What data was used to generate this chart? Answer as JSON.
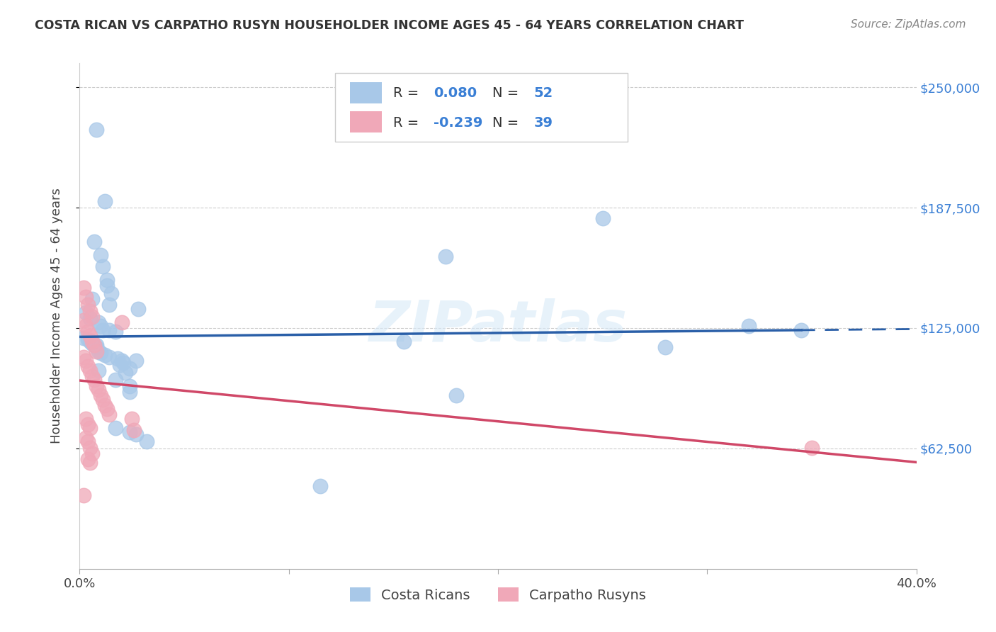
{
  "title": "COSTA RICAN VS CARPATHO RUSYN HOUSEHOLDER INCOME AGES 45 - 64 YEARS CORRELATION CHART",
  "source": "Source: ZipAtlas.com",
  "ylabel": "Householder Income Ages 45 - 64 years",
  "xlim": [
    0.0,
    0.4
  ],
  "ylim": [
    0,
    262500
  ],
  "yticks": [
    62500,
    125000,
    187500,
    250000
  ],
  "ytick_labels": [
    "$62,500",
    "$125,000",
    "$187,500",
    "$250,000"
  ],
  "xticks": [
    0.0,
    0.1,
    0.2,
    0.3,
    0.4
  ],
  "blue_R": 0.08,
  "blue_N": 52,
  "pink_R": -0.239,
  "pink_N": 39,
  "blue_color": "#a8c8e8",
  "blue_line_color": "#2a5fa8",
  "pink_color": "#f0a8b8",
  "pink_line_color": "#d04868",
  "blue_scatter": [
    [
      0.008,
      228000
    ],
    [
      0.012,
      191000
    ],
    [
      0.007,
      170000
    ],
    [
      0.01,
      163000
    ],
    [
      0.011,
      157000
    ],
    [
      0.013,
      150000
    ],
    [
      0.013,
      147000
    ],
    [
      0.015,
      143000
    ],
    [
      0.006,
      140000
    ],
    [
      0.014,
      137000
    ],
    [
      0.028,
      135000
    ],
    [
      0.003,
      133000
    ],
    [
      0.005,
      130000
    ],
    [
      0.009,
      128000
    ],
    [
      0.01,
      126000
    ],
    [
      0.011,
      124000
    ],
    [
      0.014,
      124000
    ],
    [
      0.017,
      123000
    ],
    [
      0.002,
      120000
    ],
    [
      0.004,
      119000
    ],
    [
      0.005,
      118000
    ],
    [
      0.006,
      117000
    ],
    [
      0.007,
      116000
    ],
    [
      0.008,
      116000
    ],
    [
      0.008,
      115000
    ],
    [
      0.009,
      113000
    ],
    [
      0.01,
      112000
    ],
    [
      0.012,
      111000
    ],
    [
      0.014,
      110000
    ],
    [
      0.018,
      109000
    ],
    [
      0.02,
      108000
    ],
    [
      0.027,
      108000
    ],
    [
      0.021,
      107000
    ],
    [
      0.019,
      106000
    ],
    [
      0.024,
      104000
    ],
    [
      0.009,
      103000
    ],
    [
      0.022,
      102000
    ],
    [
      0.017,
      98000
    ],
    [
      0.024,
      95000
    ],
    [
      0.024,
      92000
    ],
    [
      0.175,
      162000
    ],
    [
      0.25,
      182000
    ],
    [
      0.32,
      126000
    ],
    [
      0.345,
      124000
    ],
    [
      0.155,
      118000
    ],
    [
      0.28,
      115000
    ],
    [
      0.18,
      90000
    ],
    [
      0.017,
      73000
    ],
    [
      0.024,
      71000
    ],
    [
      0.027,
      70000
    ],
    [
      0.032,
      66000
    ],
    [
      0.115,
      43000
    ]
  ],
  "pink_scatter": [
    [
      0.002,
      146000
    ],
    [
      0.003,
      141000
    ],
    [
      0.004,
      137000
    ],
    [
      0.005,
      134000
    ],
    [
      0.006,
      131000
    ],
    [
      0.002,
      129000
    ],
    [
      0.003,
      126000
    ],
    [
      0.004,
      123000
    ],
    [
      0.005,
      121000
    ],
    [
      0.006,
      118000
    ],
    [
      0.007,
      116000
    ],
    [
      0.008,
      113000
    ],
    [
      0.002,
      110000
    ],
    [
      0.003,
      108000
    ],
    [
      0.004,
      105000
    ],
    [
      0.005,
      103000
    ],
    [
      0.006,
      100000
    ],
    [
      0.007,
      98000
    ],
    [
      0.008,
      95000
    ],
    [
      0.009,
      93000
    ],
    [
      0.01,
      90000
    ],
    [
      0.011,
      88000
    ],
    [
      0.012,
      85000
    ],
    [
      0.013,
      83000
    ],
    [
      0.014,
      80000
    ],
    [
      0.003,
      78000
    ],
    [
      0.004,
      75000
    ],
    [
      0.005,
      73000
    ],
    [
      0.02,
      128000
    ],
    [
      0.025,
      78000
    ],
    [
      0.026,
      72000
    ],
    [
      0.003,
      68000
    ],
    [
      0.004,
      66000
    ],
    [
      0.005,
      63000
    ],
    [
      0.006,
      60000
    ],
    [
      0.004,
      57000
    ],
    [
      0.005,
      55000
    ],
    [
      0.35,
      63000
    ],
    [
      0.002,
      38000
    ]
  ],
  "watermark": "ZIPatlas",
  "background_color": "#ffffff",
  "grid_color": "#cccccc",
  "legend_blue_label": "Costa Ricans",
  "legend_pink_label": "Carpatho Rusyns",
  "accent_color": "#3a7fd5"
}
